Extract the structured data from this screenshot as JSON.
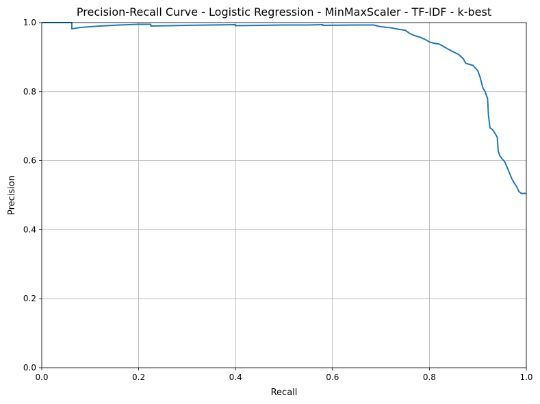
{
  "chart_data": {
    "type": "line",
    "title": "Precision-Recall Curve - Logistic Regression - MinMaxScaler - TF-IDF - k-best",
    "xlabel": "Recall",
    "ylabel": "Precision",
    "xlim": [
      0,
      1
    ],
    "ylim": [
      0,
      1
    ],
    "xticks": [
      0.0,
      0.2,
      0.4,
      0.6,
      0.8,
      1.0
    ],
    "yticks": [
      0.0,
      0.2,
      0.4,
      0.6,
      0.8,
      1.0
    ],
    "xtick_labels": [
      "0.0",
      "0.2",
      "0.4",
      "0.6",
      "0.8",
      "1.0"
    ],
    "ytick_labels": [
      "0.0",
      "0.2",
      "0.4",
      "0.6",
      "0.8",
      "1.0"
    ],
    "grid": true,
    "series": [
      {
        "color": "#1f77b4",
        "x": [
          0.0,
          0.062,
          0.062,
          0.08,
          0.12,
          0.16,
          0.2,
          0.225,
          0.225,
          0.3,
          0.35,
          0.4,
          0.4,
          0.45,
          0.5,
          0.55,
          0.58,
          0.58,
          0.65,
          0.685,
          0.7,
          0.72,
          0.74,
          0.75,
          0.76,
          0.77,
          0.78,
          0.79,
          0.8,
          0.81,
          0.82,
          0.83,
          0.84,
          0.85,
          0.86,
          0.87,
          0.875,
          0.885,
          0.89,
          0.9,
          0.905,
          0.91,
          0.915,
          0.92,
          0.922,
          0.925,
          0.93,
          0.935,
          0.94,
          0.942,
          0.945,
          0.95,
          0.955,
          0.96,
          0.965,
          0.97,
          0.975,
          0.98,
          0.985,
          0.99,
          1.0
        ],
        "y": [
          1.0,
          1.0,
          0.982,
          0.986,
          0.99,
          0.993,
          0.995,
          0.995,
          0.99,
          0.992,
          0.993,
          0.994,
          0.991,
          0.992,
          0.993,
          0.993,
          0.994,
          0.992,
          0.993,
          0.993,
          0.988,
          0.985,
          0.98,
          0.978,
          0.968,
          0.962,
          0.958,
          0.952,
          0.944,
          0.94,
          0.938,
          0.93,
          0.922,
          0.915,
          0.908,
          0.895,
          0.882,
          0.878,
          0.876,
          0.86,
          0.84,
          0.812,
          0.8,
          0.78,
          0.73,
          0.695,
          0.69,
          0.68,
          0.668,
          0.628,
          0.615,
          0.605,
          0.598,
          0.582,
          0.565,
          0.548,
          0.535,
          0.525,
          0.51,
          0.505,
          0.505
        ]
      }
    ]
  }
}
